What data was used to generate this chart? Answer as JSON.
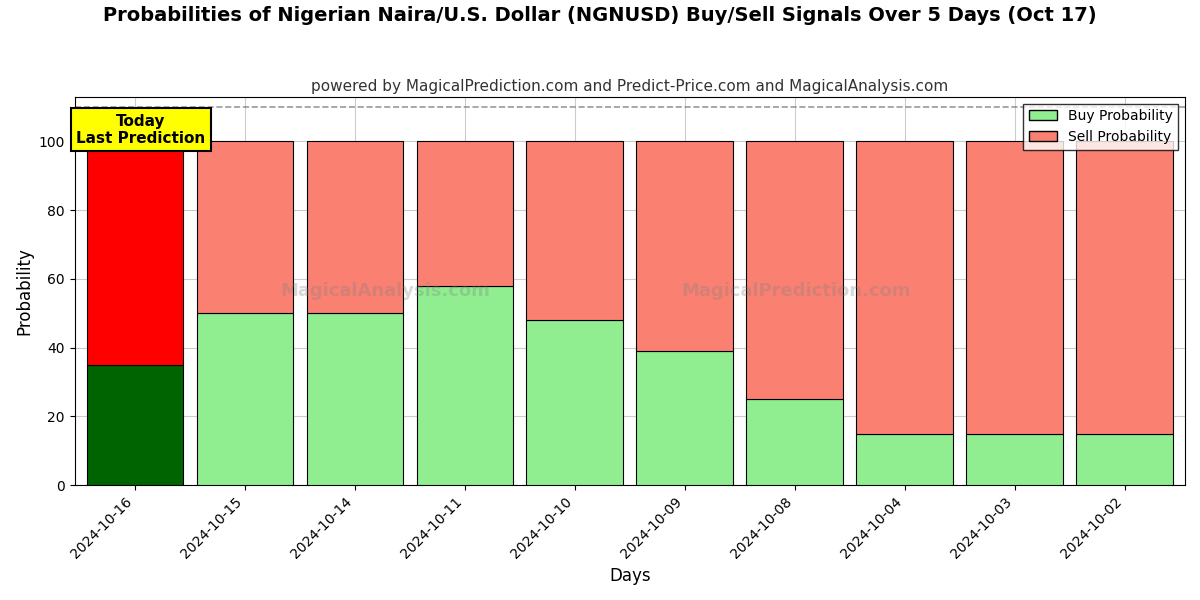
{
  "title": "Probabilities of Nigerian Naira/U.S. Dollar (NGNUSD) Buy/Sell Signals Over 5 Days (Oct 17)",
  "subtitle": "powered by MagicalPrediction.com and Predict-Price.com and MagicalAnalysis.com",
  "xlabel": "Days",
  "ylabel": "Probability",
  "categories": [
    "2024-10-16",
    "2024-10-15",
    "2024-10-14",
    "2024-10-11",
    "2024-10-10",
    "2024-10-09",
    "2024-10-08",
    "2024-10-04",
    "2024-10-03",
    "2024-10-02"
  ],
  "buy_values": [
    35,
    50,
    50,
    58,
    48,
    39,
    25,
    15,
    15,
    15
  ],
  "sell_values": [
    65,
    50,
    50,
    42,
    52,
    61,
    75,
    85,
    85,
    85
  ],
  "buy_colors": [
    "#006400",
    "#90EE90",
    "#90EE90",
    "#90EE90",
    "#90EE90",
    "#90EE90",
    "#90EE90",
    "#90EE90",
    "#90EE90",
    "#90EE90"
  ],
  "sell_colors": [
    "#FF0000",
    "#FA8072",
    "#FA8072",
    "#FA8072",
    "#FA8072",
    "#FA8072",
    "#FA8072",
    "#FA8072",
    "#FA8072",
    "#FA8072"
  ],
  "today_box_color": "#FFFF00",
  "today_label": "Today\nLast Prediction",
  "legend_buy_color": "#90EE90",
  "legend_sell_color": "#FA8072",
  "legend_buy_label": "Buy Probability",
  "legend_sell_label": "Sell Probability",
  "ylim": [
    0,
    113
  ],
  "yticks": [
    0,
    20,
    40,
    60,
    80,
    100
  ],
  "watermark1": "MagicalAnalysis.com",
  "watermark2": "MagicalPrediction.com",
  "background_color": "#ffffff",
  "grid_color": "#cccccc",
  "bar_edge_color": "#000000",
  "title_fontsize": 14,
  "subtitle_fontsize": 11,
  "axis_label_fontsize": 12,
  "bar_width": 0.88
}
